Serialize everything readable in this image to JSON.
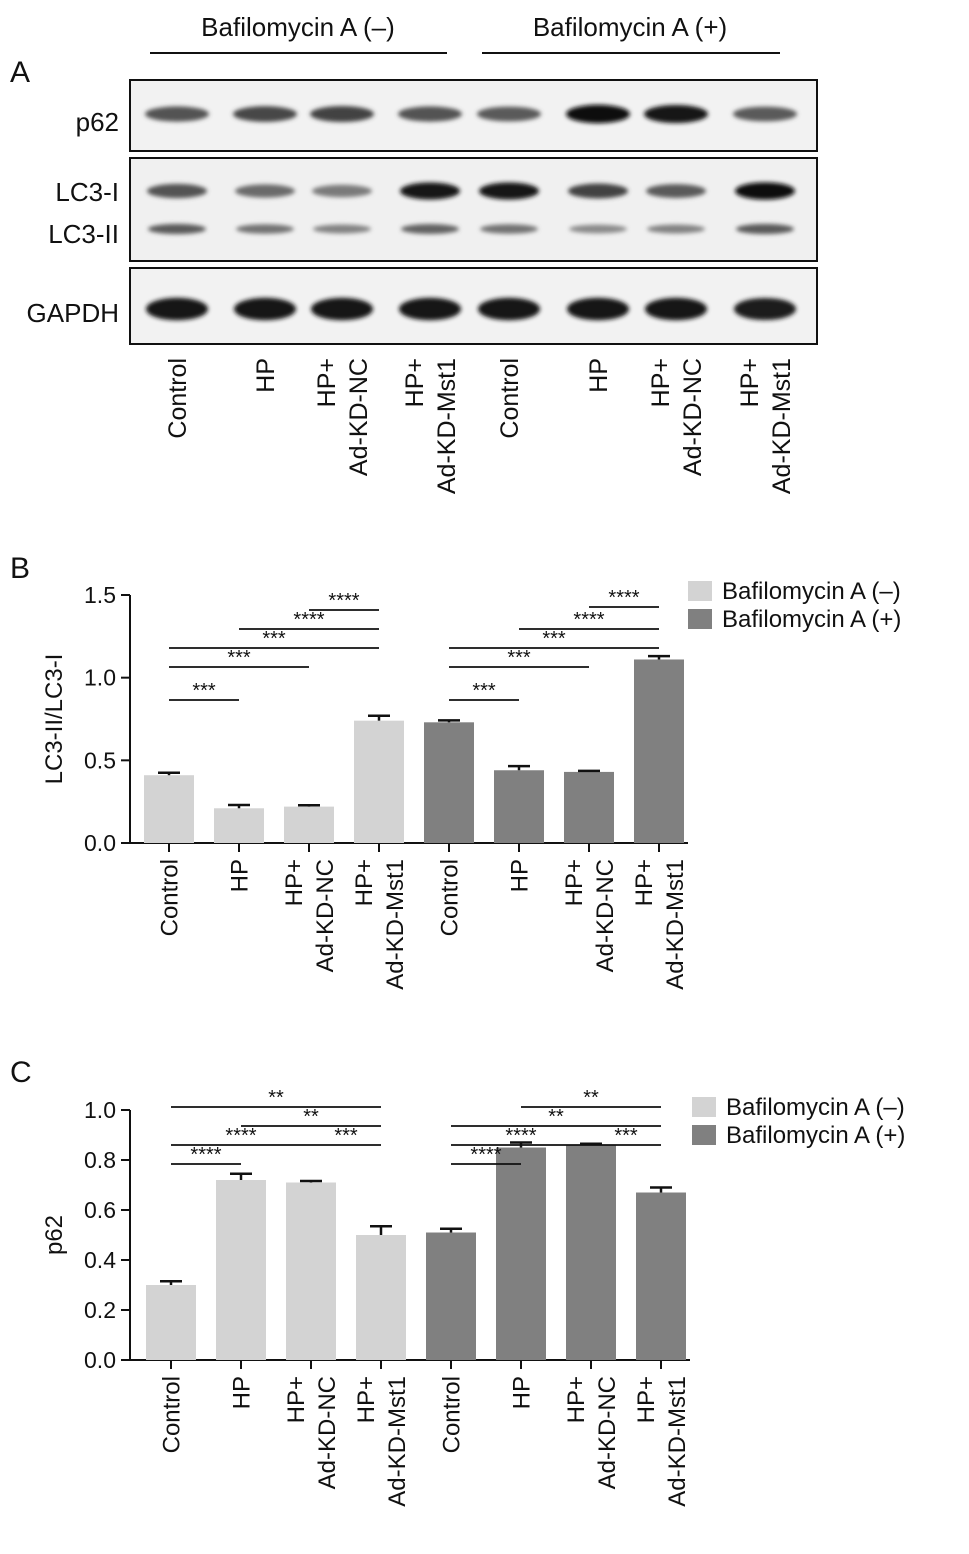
{
  "panel_a": {
    "panel_label": "A",
    "group_labels": [
      "Bafilomycin A (–)",
      "Bafilomycin A (+)"
    ],
    "blot_labels": {
      "p62": "p62",
      "lc3_i": "LC3-I",
      "lc3_ii": "LC3-II",
      "gapdh": "GAPDH"
    },
    "lanes": [
      [
        "Control"
      ],
      [
        "HP"
      ],
      [
        "HP+",
        "Ad-KD-NC"
      ],
      [
        "HP+",
        "Ad-KD-Mst1"
      ],
      [
        "Control"
      ],
      [
        "HP"
      ],
      [
        "HP+",
        "Ad-KD-NC"
      ],
      [
        "HP+",
        "Ad-KD-Mst1"
      ]
    ],
    "band_intensity": {
      "p62": [
        0.55,
        0.62,
        0.65,
        0.55,
        0.5,
        1.0,
        0.95,
        0.5
      ],
      "lc3_i": [
        0.55,
        0.4,
        0.3,
        0.95,
        0.95,
        0.65,
        0.5,
        1.0
      ],
      "lc3_ii": [
        0.5,
        0.35,
        0.25,
        0.45,
        0.35,
        0.2,
        0.25,
        0.5
      ],
      "gapdh": [
        0.95,
        0.95,
        0.95,
        0.95,
        0.95,
        0.95,
        0.95,
        0.9
      ]
    }
  },
  "chart_data": [
    {
      "panel_label": "B",
      "type": "bar",
      "categories": [
        [
          "Control"
        ],
        [
          "HP"
        ],
        [
          "HP+",
          "Ad-KD-NC"
        ],
        [
          "HP+",
          "Ad-KD-Mst1"
        ],
        [
          "Control"
        ],
        [
          "HP"
        ],
        [
          "HP+",
          "Ad-KD-NC"
        ],
        [
          "HP+",
          "Ad-KD-Mst1"
        ]
      ],
      "values": [
        0.41,
        0.21,
        0.22,
        0.74,
        0.73,
        0.44,
        0.43,
        1.11
      ],
      "errors": [
        0.015,
        0.02,
        0.008,
        0.03,
        0.012,
        0.025,
        0.006,
        0.02
      ],
      "bar_series": [
        0,
        0,
        0,
        0,
        1,
        1,
        1,
        1
      ],
      "legend": [
        {
          "name": "Bafilomycin A (–)",
          "color": "#d3d3d3"
        },
        {
          "name": "Bafilomycin A (+)",
          "color": "#808080"
        }
      ],
      "legend_position": "top-right",
      "ylabel": "LC3-II/LC3-I",
      "ylim": [
        0,
        1.5
      ],
      "yticks": [
        "0.0",
        "0.5",
        "1.0",
        "1.5"
      ],
      "ytick_values": [
        0,
        0.5,
        1.0,
        1.5
      ],
      "grid": false,
      "significance": [
        {
          "from": 0,
          "to": 1,
          "label": "***"
        },
        {
          "from": 0,
          "to": 2,
          "label": "***"
        },
        {
          "from": 0,
          "to": 3,
          "label": "***"
        },
        {
          "from": 1,
          "to": 3,
          "label": "****"
        },
        {
          "from": 2,
          "to": 3,
          "label": "****"
        },
        {
          "from": 4,
          "to": 5,
          "label": "***"
        },
        {
          "from": 4,
          "to": 6,
          "label": "***"
        },
        {
          "from": 4,
          "to": 7,
          "label": "***"
        },
        {
          "from": 5,
          "to": 7,
          "label": "****"
        },
        {
          "from": 6,
          "to": 7,
          "label": "****"
        }
      ]
    },
    {
      "panel_label": "C",
      "type": "bar",
      "categories": [
        [
          "Control"
        ],
        [
          "HP"
        ],
        [
          "HP+",
          "Ad-KD-NC"
        ],
        [
          "HP+",
          "Ad-KD-Mst1"
        ],
        [
          "Control"
        ],
        [
          "HP"
        ],
        [
          "HP+",
          "Ad-KD-NC"
        ],
        [
          "HP+",
          "Ad-KD-Mst1"
        ]
      ],
      "values": [
        0.3,
        0.72,
        0.71,
        0.5,
        0.51,
        0.85,
        0.86,
        0.67
      ],
      "errors": [
        0.015,
        0.025,
        0.006,
        0.035,
        0.015,
        0.02,
        0.005,
        0.02
      ],
      "bar_series": [
        0,
        0,
        0,
        0,
        1,
        1,
        1,
        1
      ],
      "legend": [
        {
          "name": "Bafilomycin A (–)",
          "color": "#d3d3d3"
        },
        {
          "name": "Bafilomycin A (+)",
          "color": "#808080"
        }
      ],
      "legend_position": "top-right",
      "ylabel": "p62",
      "ylim": [
        0,
        1.0
      ],
      "yticks": [
        "0.0",
        "0.2",
        "0.4",
        "0.6",
        "0.8",
        "1.0"
      ],
      "ytick_values": [
        0,
        0.2,
        0.4,
        0.6,
        0.8,
        1.0
      ],
      "grid": false,
      "significance": [
        {
          "from": 0,
          "to": 1,
          "label": "****"
        },
        {
          "from": 0,
          "to": 2,
          "label": "****"
        },
        {
          "from": 0,
          "to": 3,
          "label": "**"
        },
        {
          "from": 1,
          "to": 3,
          "label": "**"
        },
        {
          "from": 2,
          "to": 3,
          "label": "***"
        },
        {
          "from": 4,
          "to": 5,
          "label": "****"
        },
        {
          "from": 4,
          "to": 6,
          "label": "****"
        },
        {
          "from": 4,
          "to": 7,
          "label": "**"
        },
        {
          "from": 5,
          "to": 7,
          "label": "**"
        },
        {
          "from": 6,
          "to": 7,
          "label": "***"
        }
      ]
    }
  ]
}
